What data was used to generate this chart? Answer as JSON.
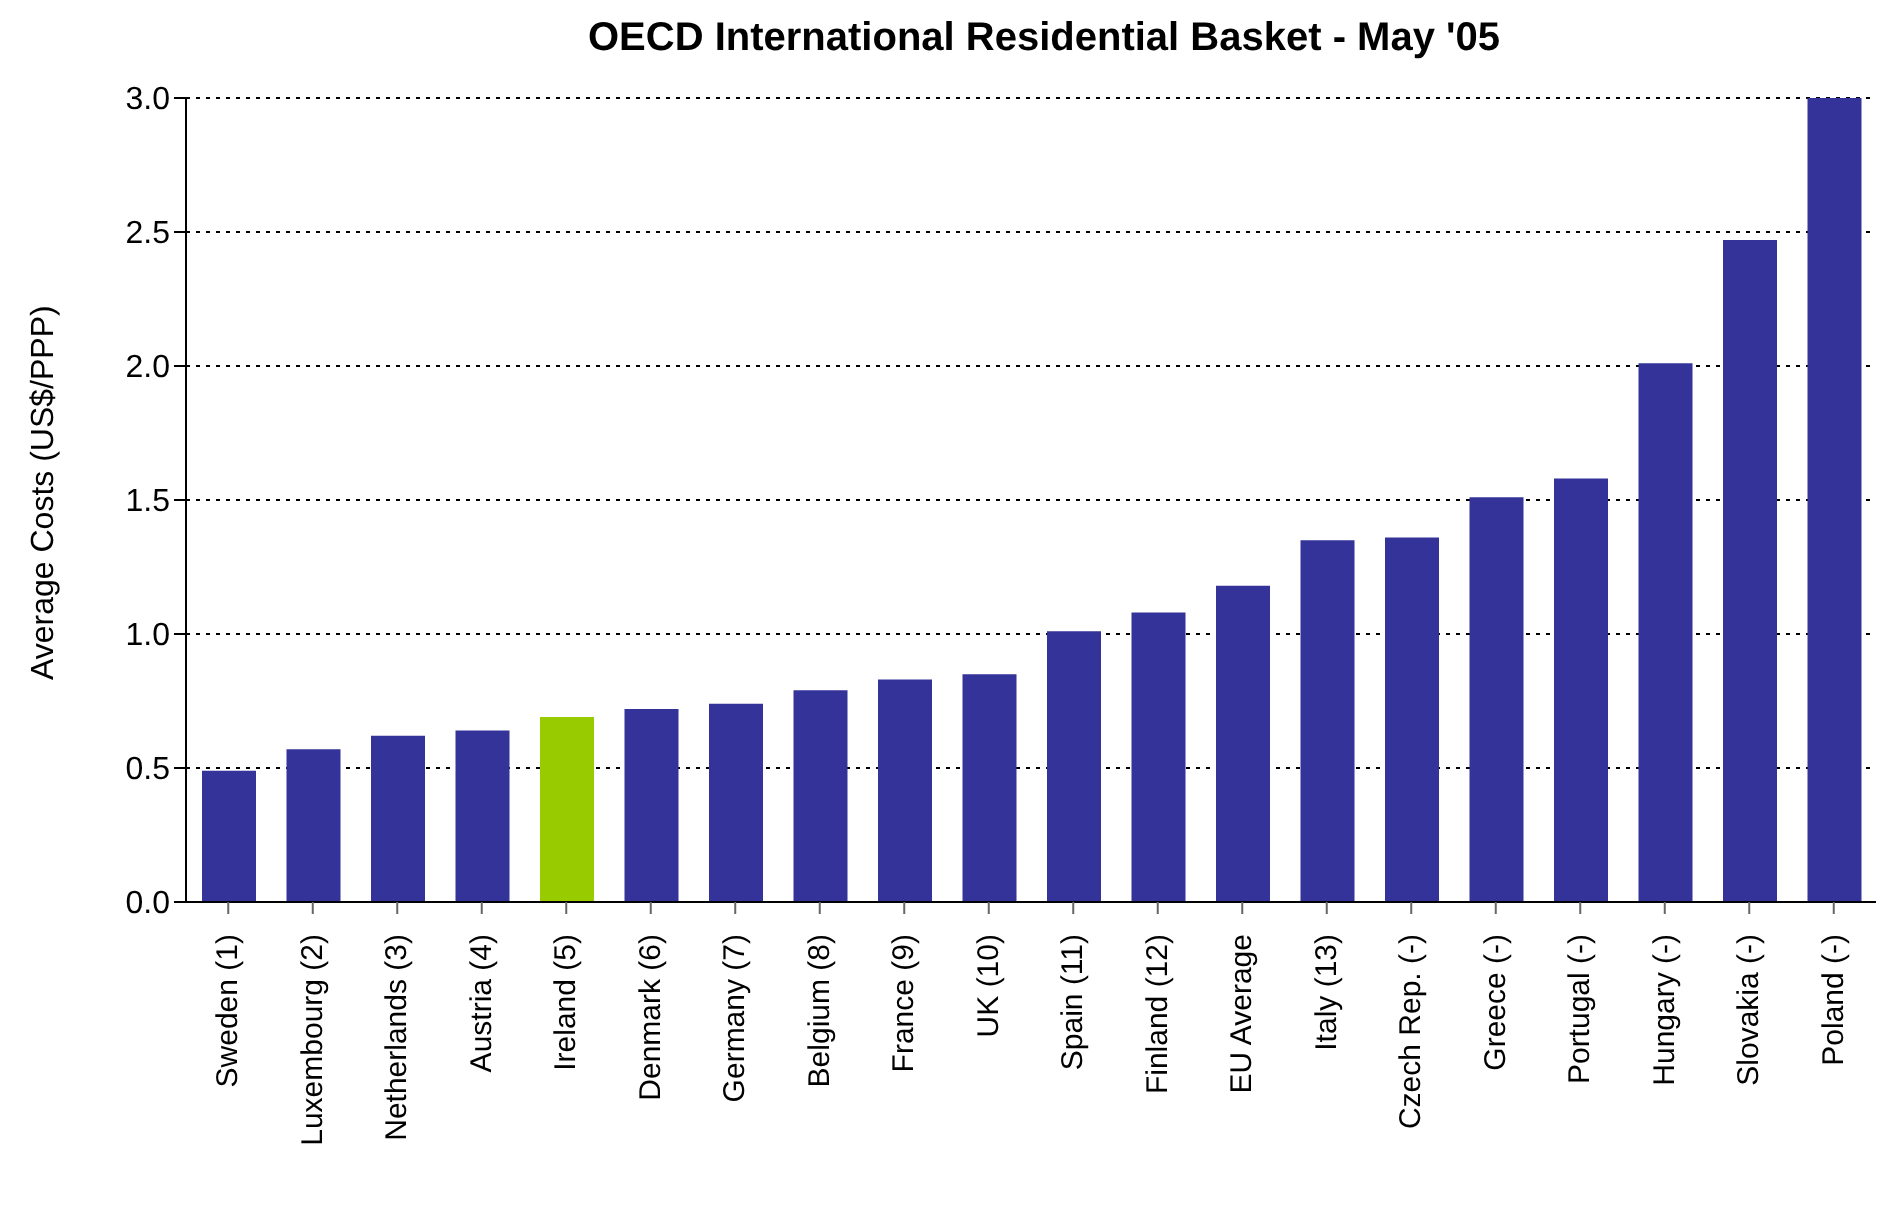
{
  "chart_data": {
    "type": "bar",
    "title": "OECD International Residential Basket - May '05",
    "ylabel": "Average Costs (US$/PPP)",
    "categories": [
      "Sweden (1)",
      "Luxembourg (2)",
      "Netherlands (3)",
      "Austria (4)",
      "Ireland (5)",
      "Denmark (6)",
      "Germany (7)",
      "Belgium (8)",
      "France (9)",
      "UK (10)",
      "Spain (11)",
      "Finland (12)",
      "EU Average",
      "Italy (13)",
      "Czech Rep. (-)",
      "Greece (-)",
      "Portugal (-)",
      "Hungary (-)",
      "Slovakia (-)",
      "Poland (-)"
    ],
    "values": [
      0.49,
      0.57,
      0.62,
      0.64,
      0.69,
      0.72,
      0.74,
      0.79,
      0.83,
      0.85,
      1.01,
      1.08,
      1.18,
      1.35,
      1.36,
      1.51,
      1.58,
      2.01,
      2.47,
      3.0
    ],
    "colors": [
      "#333399",
      "#333399",
      "#333399",
      "#333399",
      "#99cc00",
      "#333399",
      "#333399",
      "#333399",
      "#333399",
      "#333399",
      "#333399",
      "#333399",
      "#333399",
      "#333399",
      "#333399",
      "#333399",
      "#333399",
      "#333399",
      "#333399",
      "#333399"
    ],
    "ylim": [
      0,
      3.0
    ],
    "yticks": [
      {
        "value": 0,
        "label": "0.0"
      },
      {
        "value": 0.5,
        "label": "0.5"
      },
      {
        "value": 1,
        "label": "1.0"
      },
      {
        "value": 1.5,
        "label": "1.5"
      },
      {
        "value": 2,
        "label": "2.0"
      },
      {
        "value": 2.5,
        "label": "2.5"
      },
      {
        "value": 3,
        "label": "3.0"
      }
    ],
    "grid": "y"
  }
}
